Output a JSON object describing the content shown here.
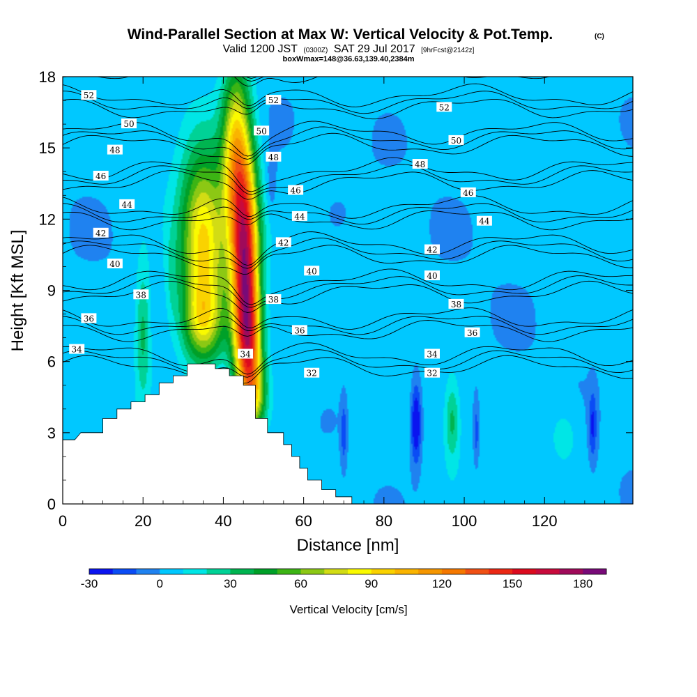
{
  "title": {
    "main": "Wind-Parallel Section at Max W: Vertical Velocity & Pot.Temp.",
    "main_tag": "(C)",
    "valid_prefix": "Valid 1200 JST",
    "valid_utc": "(0300Z)",
    "valid_date": "SAT 29 Jul 2017",
    "valid_fcst": "[9hrFcst@2142z]",
    "subtitle": "boxWmax=148@36.63,139.40,2384m"
  },
  "colors": {
    "levels": [
      -30,
      -20,
      -10,
      0,
      10,
      20,
      30,
      40,
      50,
      60,
      70,
      80,
      90,
      100,
      110,
      120,
      130,
      140,
      150,
      160,
      170,
      180,
      190
    ],
    "palette": [
      "#0a14f0",
      "#0a4cf5",
      "#1f82f0",
      "#00c8ff",
      "#00e6e6",
      "#00d296",
      "#00b450",
      "#00a028",
      "#3cb414",
      "#8cc814",
      "#d2dc14",
      "#fafa00",
      "#fad200",
      "#fab400",
      "#f59600",
      "#f57800",
      "#f05014",
      "#eb2814",
      "#dc0a1e",
      "#c80a3c",
      "#a00a5a",
      "#780a78"
    ]
  },
  "chart_data": {
    "type": "contour",
    "xlabel": "Distance [nm]",
    "ylabel": "Height [Kft MSL]",
    "xlim": [
      0,
      142
    ],
    "ylim": [
      0,
      18
    ],
    "x_ticks": [
      0,
      20,
      40,
      60,
      80,
      100,
      120
    ],
    "y_ticks": [
      0,
      3,
      6,
      9,
      12,
      15,
      18
    ],
    "x_tick_labels": [
      "0",
      "20",
      "40",
      "60",
      "80",
      "100",
      "120"
    ],
    "y_tick_labels": [
      "0",
      "3",
      "6",
      "9",
      "12",
      "15",
      "18"
    ],
    "fill_variable": "Vertical Velocity [cm/s]",
    "contour_variable": "Potential temperature (C)",
    "colorbar": {
      "label": "Vertical Velocity [cm/s]",
      "ticks": [
        -30,
        0,
        30,
        60,
        90,
        120,
        150,
        180
      ],
      "tick_labels": [
        "-30",
        "0",
        "30",
        "60",
        "90",
        "120",
        "150",
        "180"
      ],
      "range": [
        -30,
        190
      ]
    },
    "terrain_profile": [
      [
        0,
        2.7
      ],
      [
        3,
        2.7
      ],
      [
        4.5,
        3.0
      ],
      [
        10,
        3.0
      ],
      [
        10,
        3.6
      ],
      [
        13.5,
        3.6
      ],
      [
        13.5,
        4.0
      ],
      [
        17,
        4.0
      ],
      [
        17,
        4.3
      ],
      [
        20.5,
        4.3
      ],
      [
        20.5,
        4.6
      ],
      [
        24,
        4.6
      ],
      [
        24,
        5.1
      ],
      [
        27.5,
        5.1
      ],
      [
        27.5,
        5.4
      ],
      [
        31,
        5.4
      ],
      [
        31,
        5.9
      ],
      [
        38,
        5.9
      ],
      [
        38,
        5.7
      ],
      [
        41.5,
        5.7
      ],
      [
        41.5,
        5.4
      ],
      [
        45,
        5.4
      ],
      [
        45,
        5.0
      ],
      [
        48,
        5.0
      ],
      [
        48,
        3.6
      ],
      [
        51,
        3.6
      ],
      [
        51,
        3.0
      ],
      [
        55,
        3.0
      ],
      [
        55,
        2.5
      ],
      [
        57,
        2.5
      ],
      [
        57,
        2.0
      ],
      [
        59,
        2.0
      ],
      [
        59,
        1.5
      ],
      [
        61,
        1.5
      ],
      [
        61,
        1.0
      ],
      [
        64.5,
        1.0
      ],
      [
        64.5,
        0.6
      ],
      [
        68,
        0.6
      ],
      [
        68,
        0.3
      ],
      [
        72,
        0.3
      ],
      [
        72,
        0
      ]
    ],
    "velocity_features": [
      {
        "x": 35,
        "y": 11.0,
        "sx": 4.0,
        "sy": 2.6,
        "w": 92
      },
      {
        "x": 35,
        "y": 7.6,
        "sx": 3.6,
        "sy": 1.2,
        "w": 50
      },
      {
        "x": 43,
        "y": 14.5,
        "sx": 2.4,
        "sy": 2.8,
        "w": 85
      },
      {
        "x": 45.5,
        "y": 10.0,
        "sx": 2.3,
        "sy": 3.2,
        "w": 150
      },
      {
        "x": 46.5,
        "y": 6.5,
        "sx": 2.3,
        "sy": 1.8,
        "w": 82
      },
      {
        "x": 48,
        "y": 4.5,
        "sx": 2.0,
        "sy": 1.0,
        "w": 45
      },
      {
        "x": 20,
        "y": 7.3,
        "sx": 1.4,
        "sy": 2.0,
        "w": 33
      },
      {
        "x": 27,
        "y": 9.4,
        "sx": 1.2,
        "sy": 1.4,
        "w": 12
      },
      {
        "x": 97,
        "y": 3.5,
        "sx": 1.3,
        "sy": 1.2,
        "w": 30
      },
      {
        "x": 125,
        "y": 3.0,
        "sx": 3.0,
        "sy": 1.0,
        "w": 13
      },
      {
        "x": 88,
        "y": 3.4,
        "sx": 0.9,
        "sy": 1.2,
        "w": -38
      },
      {
        "x": 70,
        "y": 3.0,
        "sx": 0.5,
        "sy": 1.0,
        "w": -18
      },
      {
        "x": 103,
        "y": 3.0,
        "sx": 0.5,
        "sy": 1.0,
        "w": -18
      },
      {
        "x": 132,
        "y": 3.3,
        "sx": 0.7,
        "sy": 1.0,
        "w": -24
      },
      {
        "x": 52,
        "y": 13.5,
        "sx": 0.8,
        "sy": 0.9,
        "w": -12
      }
    ],
    "theta_isolines": [
      {
        "value": 32,
        "label": "32"
      },
      {
        "value": 34,
        "label": "34"
      },
      {
        "value": 36,
        "label": "36"
      },
      {
        "value": 38,
        "label": "38"
      },
      {
        "value": 40,
        "label": "40"
      },
      {
        "value": 42,
        "label": "42"
      },
      {
        "value": 44,
        "label": "44"
      },
      {
        "value": 46,
        "label": "46"
      },
      {
        "value": 48,
        "label": "48"
      },
      {
        "value": 50,
        "label": "50"
      },
      {
        "value": 52,
        "label": "52"
      }
    ],
    "contour_labels": [
      {
        "x": 6.5,
        "y": 17.2,
        "text": "52"
      },
      {
        "x": 52.5,
        "y": 17.0,
        "text": "52"
      },
      {
        "x": 95,
        "y": 16.7,
        "text": "52"
      },
      {
        "x": 16.5,
        "y": 16.0,
        "text": "50"
      },
      {
        "x": 49.5,
        "y": 15.7,
        "text": "50"
      },
      {
        "x": 98,
        "y": 15.3,
        "text": "50"
      },
      {
        "x": 13,
        "y": 14.9,
        "text": "48"
      },
      {
        "x": 52.5,
        "y": 14.6,
        "text": "48"
      },
      {
        "x": 89,
        "y": 14.3,
        "text": "48"
      },
      {
        "x": 9.5,
        "y": 13.8,
        "text": "46"
      },
      {
        "x": 58,
        "y": 13.2,
        "text": "46"
      },
      {
        "x": 101,
        "y": 13.1,
        "text": "46"
      },
      {
        "x": 16,
        "y": 12.6,
        "text": "44"
      },
      {
        "x": 59,
        "y": 12.1,
        "text": "44"
      },
      {
        "x": 105,
        "y": 11.9,
        "text": "44"
      },
      {
        "x": 9.5,
        "y": 11.4,
        "text": "42"
      },
      {
        "x": 55,
        "y": 11.0,
        "text": "42"
      },
      {
        "x": 92,
        "y": 10.7,
        "text": "42"
      },
      {
        "x": 13,
        "y": 10.1,
        "text": "40"
      },
      {
        "x": 62,
        "y": 9.8,
        "text": "40"
      },
      {
        "x": 92,
        "y": 9.6,
        "text": "40"
      },
      {
        "x": 19.5,
        "y": 8.8,
        "text": "38"
      },
      {
        "x": 52.5,
        "y": 8.6,
        "text": "38"
      },
      {
        "x": 98,
        "y": 8.4,
        "text": "38"
      },
      {
        "x": 6.5,
        "y": 7.8,
        "text": "36"
      },
      {
        "x": 59,
        "y": 7.3,
        "text": "36"
      },
      {
        "x": 102,
        "y": 7.2,
        "text": "36"
      },
      {
        "x": 3.5,
        "y": 6.5,
        "text": "34"
      },
      {
        "x": 45.5,
        "y": 6.3,
        "text": "34"
      },
      {
        "x": 92,
        "y": 6.3,
        "text": "34"
      },
      {
        "x": 62,
        "y": 5.5,
        "text": "32"
      },
      {
        "x": 92,
        "y": 5.5,
        "text": "32"
      }
    ]
  }
}
